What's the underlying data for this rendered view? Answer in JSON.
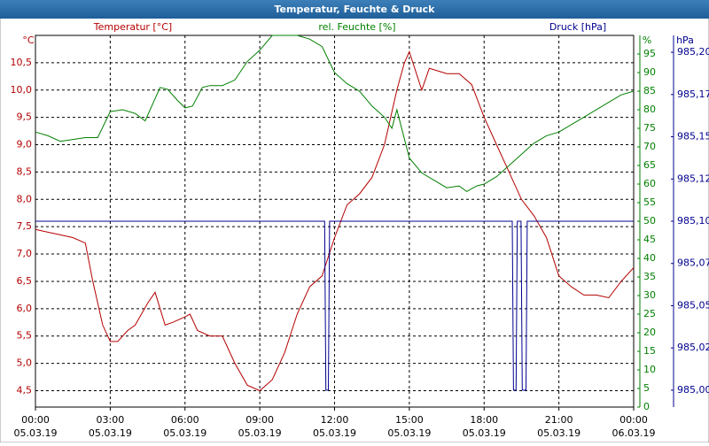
{
  "chart_data": {
    "type": "line",
    "title": "Temperatur, Feuchte & Druck",
    "ylabel": "Temperatur [°C]",
    "y2label": "rel. Feuchte [%]",
    "y3label": "Druck [hPa]",
    "yunit": "°C",
    "y2unit": "%",
    "y3unit": "hPa",
    "xlim": [
      0,
      24
    ],
    "xticks": [
      {
        "value": 0,
        "label": "00:00"
      },
      {
        "value": 3,
        "label": "03:00"
      },
      {
        "value": 6,
        "label": "06:00"
      },
      {
        "value": 9,
        "label": "09:00"
      },
      {
        "value": 12,
        "label": "12:00"
      },
      {
        "value": 15,
        "label": "15:00"
      },
      {
        "value": 18,
        "label": "18:00"
      },
      {
        "value": 21,
        "label": "21:00"
      },
      {
        "value": 24,
        "label": "00:00"
      }
    ],
    "xtick_dates": [
      "05.03.19",
      "05.03.19",
      "05.03.19",
      "05.03.19",
      "05.03.19",
      "05.03.19",
      "05.03.19",
      "05.03.19",
      "06.03.19"
    ],
    "ylim": [
      4.2,
      11.0
    ],
    "yticks": [
      {
        "value": 4.5,
        "label": "4,5"
      },
      {
        "value": 5,
        "label": "5,0"
      },
      {
        "value": 5.5,
        "label": "5,5"
      },
      {
        "value": 6,
        "label": "6,0"
      },
      {
        "value": 6.5,
        "label": "6,5"
      },
      {
        "value": 7,
        "label": "7,0"
      },
      {
        "value": 7.5,
        "label": "7,5"
      },
      {
        "value": 8,
        "label": "8,0"
      },
      {
        "value": 8.5,
        "label": "8,5"
      },
      {
        "value": 9,
        "label": "9,0"
      },
      {
        "value": 9.5,
        "label": "9,5"
      },
      {
        "value": 10,
        "label": "10,0"
      },
      {
        "value": 10.5,
        "label": "10,5"
      }
    ],
    "y2lim": [
      0,
      100
    ],
    "y2ticks": [
      0,
      5,
      10,
      15,
      20,
      25,
      30,
      35,
      40,
      45,
      50,
      55,
      60,
      65,
      70,
      75,
      80,
      85,
      90,
      95
    ],
    "y3lim": [
      984.99,
      985.21
    ],
    "y3ticks": [
      {
        "value": 985.0,
        "label": "985,00"
      },
      {
        "value": 985.025,
        "label": "985,02"
      },
      {
        "value": 985.05,
        "label": "985,05"
      },
      {
        "value": 985.075,
        "label": "985,07"
      },
      {
        "value": 985.1,
        "label": "985,10"
      },
      {
        "value": 985.125,
        "label": "985,12"
      },
      {
        "value": 985.15,
        "label": "985,15"
      },
      {
        "value": 985.175,
        "label": "985,17"
      },
      {
        "value": 985.2,
        "label": "985,20"
      }
    ],
    "grid": true,
    "series": [
      {
        "name": "Temperatur",
        "color": "#b40000",
        "axis": "y",
        "x": [
          0,
          0.5,
          1,
          1.5,
          2,
          2.3,
          2.7,
          3,
          3.3,
          3.7,
          4,
          4.5,
          4.8,
          5.2,
          5.5,
          6,
          6.2,
          6.5,
          7,
          7.5,
          8,
          8.5,
          9,
          9.5,
          10,
          10.5,
          11,
          11.5,
          12,
          12.5,
          13,
          13.5,
          14,
          14.5,
          14.8,
          15,
          15.5,
          15.8,
          16.5,
          17,
          17.5,
          18,
          18.5,
          19,
          19.5,
          20,
          20.5,
          21,
          21.5,
          22,
          22.5,
          23,
          23.5,
          24
        ],
        "values": [
          7.45,
          7.4,
          7.35,
          7.3,
          7.2,
          6.5,
          5.7,
          5.4,
          5.4,
          5.6,
          5.7,
          6.1,
          6.3,
          5.7,
          5.75,
          5.85,
          5.9,
          5.6,
          5.5,
          5.5,
          5.0,
          4.6,
          4.5,
          4.7,
          5.2,
          5.9,
          6.4,
          6.6,
          7.3,
          7.9,
          8.1,
          8.4,
          9.0,
          10.0,
          10.5,
          10.7,
          10.0,
          10.4,
          10.3,
          10.3,
          10.1,
          9.5,
          9.0,
          8.5,
          8.0,
          7.7,
          7.3,
          6.6,
          6.4,
          6.25,
          6.25,
          6.2,
          6.5,
          6.75
        ]
      },
      {
        "name": "rel. Feuchte",
        "color": "#008000",
        "axis": "y2",
        "x": [
          0,
          0.5,
          1,
          1.5,
          2,
          2.5,
          3,
          3.5,
          4,
          4.4,
          5,
          5.3,
          5.7,
          6,
          6.3,
          6.7,
          7,
          7.5,
          8,
          8.5,
          9,
          9.5,
          10.5,
          11,
          11.5,
          12,
          12.5,
          13,
          13.5,
          14,
          14.3,
          14.5,
          15,
          15.5,
          16,
          16.5,
          17,
          17.3,
          17.7,
          18,
          18.5,
          19,
          19.5,
          20,
          20.5,
          21,
          21.5,
          22,
          23,
          23.5,
          24
        ],
        "values": [
          74,
          73,
          71.5,
          72,
          72.5,
          72.5,
          79.5,
          80,
          79,
          77,
          86,
          85.5,
          82.5,
          80.5,
          81,
          86,
          86.5,
          86.5,
          88,
          93,
          96,
          100,
          100,
          99,
          97,
          90,
          87,
          85,
          81,
          78,
          75,
          80,
          67,
          63,
          61,
          59,
          59.5,
          58,
          59.5,
          60,
          62,
          65,
          68,
          71,
          73,
          74,
          76,
          78,
          82,
          84,
          85
        ]
      },
      {
        "name": "Druck",
        "color": "#000090",
        "axis": "y3",
        "x": [
          0,
          11.6,
          11.65,
          11.75,
          11.8,
          19.13,
          19.18,
          19.28,
          19.33,
          19.48,
          19.53,
          19.68,
          19.73,
          24
        ],
        "values": [
          985.1,
          985.1,
          985.0,
          985.0,
          985.1,
          985.1,
          985.0,
          985.0,
          985.1,
          985.1,
          985.0,
          985.0,
          985.1,
          985.1
        ]
      }
    ]
  }
}
